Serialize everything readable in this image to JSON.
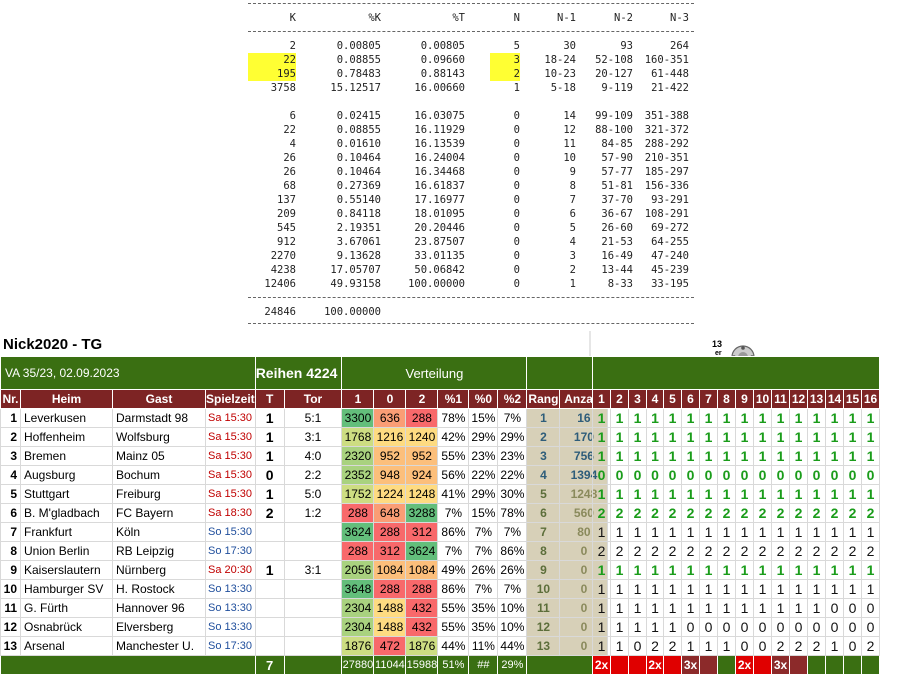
{
  "stats": {
    "headers": [
      "K",
      "%K",
      "%T",
      "N",
      "N-1",
      "N-2",
      "N-3"
    ],
    "group1": [
      [
        "2",
        "0.00805",
        "0.00805",
        "5",
        "30",
        "93",
        "264"
      ],
      [
        "22",
        "0.08855",
        "0.09660",
        "3",
        "18-24",
        "52-108",
        "160-351"
      ],
      [
        "195",
        "0.78483",
        "0.88143",
        "2",
        "10-23",
        "20-127",
        "61-448"
      ],
      [
        "3758",
        "15.12517",
        "16.00660",
        "1",
        "5-18",
        "9-119",
        "21-422"
      ]
    ],
    "group2": [
      [
        "6",
        "0.02415",
        "16.03075",
        "0",
        "14",
        "99-109",
        "351-388"
      ],
      [
        "22",
        "0.08855",
        "16.11929",
        "0",
        "12",
        "88-100",
        "321-372"
      ],
      [
        "4",
        "0.01610",
        "16.13539",
        "0",
        "11",
        "84-85",
        "288-292"
      ],
      [
        "26",
        "0.10464",
        "16.24004",
        "0",
        "10",
        "57-90",
        "210-351"
      ],
      [
        "26",
        "0.10464",
        "16.34468",
        "0",
        "9",
        "57-77",
        "185-297"
      ],
      [
        "68",
        "0.27369",
        "16.61837",
        "0",
        "8",
        "51-81",
        "156-336"
      ],
      [
        "137",
        "0.55140",
        "17.16977",
        "0",
        "7",
        "37-70",
        "93-291"
      ],
      [
        "209",
        "0.84118",
        "18.01095",
        "0",
        "6",
        "36-67",
        "108-291"
      ],
      [
        "545",
        "2.19351",
        "20.20446",
        "0",
        "5",
        "26-60",
        "69-272"
      ],
      [
        "912",
        "3.67061",
        "23.87507",
        "0",
        "4",
        "21-53",
        "64-255"
      ],
      [
        "2270",
        "9.13628",
        "33.01135",
        "0",
        "3",
        "16-49",
        "47-240"
      ],
      [
        "4238",
        "17.05707",
        "50.06842",
        "0",
        "2",
        "13-44",
        "45-239"
      ],
      [
        "12406",
        "49.93158",
        "100.00000",
        "0",
        "1",
        "8-33",
        "33-195"
      ]
    ],
    "total": [
      "24846",
      "100.00000"
    ]
  },
  "title": "Nick2020 - TG",
  "va_label": "VA 35/23, 02.09.2023",
  "reihen_label": "Reihen",
  "reihen_value": "4224",
  "verteilung_label": "Verteilung",
  "columns": [
    "Nr.",
    "Heim",
    "Gast",
    "Spielzeit",
    "T",
    "Tor",
    "1",
    "0",
    "2",
    "%1",
    "%0",
    "%2",
    "Rang",
    "Anzahl"
  ],
  "games": [
    {
      "nr": "1",
      "heim": "Leverkusen",
      "gast": "Darmstadt 98",
      "zeit": "Sa 15:30",
      "t": "1",
      "tor": "5:1",
      "v1": "3300",
      "v0": "636",
      "v2": "288",
      "p1": "78%",
      "p0": "15%",
      "p2": "7%",
      "rang": "1",
      "anzahl": "16"
    },
    {
      "nr": "2",
      "heim": "Hoffenheim",
      "gast": "Wolfsburg",
      "zeit": "Sa 15:30",
      "t": "1",
      "tor": "3:1",
      "v1": "1768",
      "v0": "1216",
      "v2": "1240",
      "p1": "42%",
      "p0": "29%",
      "p2": "29%",
      "rang": "2",
      "anzahl": "170"
    },
    {
      "nr": "3",
      "heim": "Bremen",
      "gast": "Mainz 05",
      "zeit": "Sa 15:30",
      "t": "1",
      "tor": "4:0",
      "v1": "2320",
      "v0": "952",
      "v2": "952",
      "p1": "55%",
      "p0": "23%",
      "p2": "23%",
      "rang": "3",
      "anzahl": "756"
    },
    {
      "nr": "4",
      "heim": "Augsburg",
      "gast": "Bochum",
      "zeit": "Sa 15:30",
      "t": "0",
      "tor": "2:2",
      "v1": "2352",
      "v0": "948",
      "v2": "924",
      "p1": "56%",
      "p0": "22%",
      "p2": "22%",
      "rang": "4",
      "anzahl": "1394"
    },
    {
      "nr": "5",
      "heim": "Stuttgart",
      "gast": "Freiburg",
      "zeit": "Sa 15:30",
      "t": "1",
      "tor": "5:0",
      "v1": "1752",
      "v0": "1224",
      "v2": "1248",
      "p1": "41%",
      "p0": "29%",
      "p2": "30%",
      "rang": "5",
      "anzahl": "1248"
    },
    {
      "nr": "6",
      "heim": "B. M'gladbach",
      "gast": "FC Bayern",
      "zeit": "Sa 18:30",
      "t": "2",
      "tor": "1:2",
      "v1": "288",
      "v0": "648",
      "v2": "3288",
      "p1": "7%",
      "p0": "15%",
      "p2": "78%",
      "rang": "6",
      "anzahl": "560"
    },
    {
      "nr": "7",
      "heim": "Frankfurt",
      "gast": "Köln",
      "zeit": "So 15:30",
      "t": "",
      "tor": "",
      "v1": "3624",
      "v0": "288",
      "v2": "312",
      "p1": "86%",
      "p0": "7%",
      "p2": "7%",
      "rang": "7",
      "anzahl": "80"
    },
    {
      "nr": "8",
      "heim": "Union Berlin",
      "gast": "RB Leipzig",
      "zeit": "So 17:30",
      "t": "",
      "tor": "",
      "v1": "288",
      "v0": "312",
      "v2": "3624",
      "p1": "7%",
      "p0": "7%",
      "p2": "86%",
      "rang": "8",
      "anzahl": "0"
    },
    {
      "nr": "9",
      "heim": "Kaiserslautern",
      "gast": "Nürnberg",
      "zeit": "Sa 20:30",
      "t": "1",
      "tor": "3:1",
      "v1": "2056",
      "v0": "1084",
      "v2": "1084",
      "p1": "49%",
      "p0": "26%",
      "p2": "26%",
      "rang": "9",
      "anzahl": "0"
    },
    {
      "nr": "10",
      "heim": "Hamburger SV",
      "gast": "H. Rostock",
      "zeit": "So 13:30",
      "t": "",
      "tor": "",
      "v1": "3648",
      "v2": "288",
      "v0": "288",
      "p1": "86%",
      "p0": "7%",
      "p2": "7%",
      "rang": "10",
      "anzahl": "0"
    },
    {
      "nr": "11",
      "heim": "G. Fürth",
      "gast": "Hannover 96",
      "zeit": "So 13:30",
      "t": "",
      "tor": "",
      "v1": "2304",
      "v0": "1488",
      "v2": "432",
      "p1": "55%",
      "p0": "35%",
      "p2": "10%",
      "rang": "11",
      "anzahl": "0"
    },
    {
      "nr": "12",
      "heim": "Osnabrück",
      "gast": "Elversberg",
      "zeit": "So 13:30",
      "t": "",
      "tor": "",
      "v1": "2304",
      "v0": "1488",
      "v2": "432",
      "p1": "55%",
      "p0": "35%",
      "p2": "10%",
      "rang": "12",
      "anzahl": "0"
    },
    {
      "nr": "13",
      "heim": "Arsenal",
      "gast": "Manchester U.",
      "zeit": "So 17:30",
      "t": "",
      "tor": "",
      "v1": "1876",
      "v0": "472",
      "v2": "1876",
      "p1": "44%",
      "p0": "11%",
      "p2": "44%",
      "rang": "13",
      "anzahl": "0"
    }
  ],
  "footer": {
    "t": "7",
    "v1": "27880",
    "v0": "11044",
    "v2": "15988",
    "p1": "51%",
    "p0": "##",
    "p2": "29%"
  },
  "logo_text": "13er",
  "grid_cols": [
    "1",
    "2",
    "3",
    "4",
    "5",
    "6",
    "7",
    "8",
    "9",
    "10",
    "11",
    "12",
    "13",
    "14",
    "15",
    "16"
  ],
  "grid_rows": [
    "1111111111111111",
    "1111111111111111",
    "1111111111111111",
    "0000000000000000",
    "1111111111111111",
    "2222222222222222",
    "1111111111111111",
    "2222222222222222",
    "1111111111111111",
    "1111111111111111",
    "1111111111111000",
    "1111100000000000",
    "1102211100222102"
  ],
  "grid_footer": [
    "2x",
    "",
    "",
    "2x",
    "",
    "3x",
    "",
    "",
    "2x",
    "",
    "3x",
    "",
    "",
    "",
    "",
    ""
  ],
  "colors": {
    "green": "#3a6f12",
    "maroon": "#7d2424",
    "red": "#e00000",
    "highlight": "#ffff33"
  }
}
